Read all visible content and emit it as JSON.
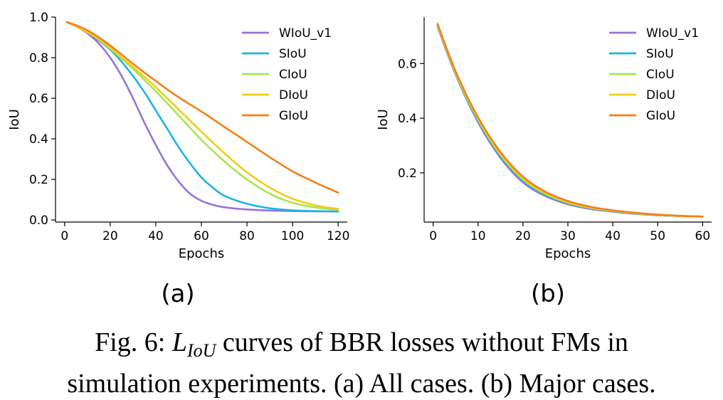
{
  "chart_data": [
    {
      "type": "line",
      "panel_label": "(a)",
      "xlabel": "Epochs",
      "ylabel": "IoU",
      "xlim": [
        -4,
        124
      ],
      "ylim": [
        -0.01,
        1.0
      ],
      "xticks": [
        0,
        20,
        40,
        60,
        80,
        100,
        120
      ],
      "yticks": [
        0.0,
        0.2,
        0.4,
        0.6,
        0.8,
        1.0
      ],
      "ytick_labels": [
        "0.0",
        "0.2",
        "0.4",
        "0.6",
        "0.8",
        "1.0"
      ],
      "grid": false,
      "legend_position": "top-right",
      "series": [
        {
          "name": "WIoU_v1",
          "color": "#9575D6",
          "x": [
            1,
            5,
            10,
            15,
            20,
            25,
            30,
            35,
            40,
            45,
            50,
            55,
            60,
            65,
            70,
            80,
            90,
            100,
            110,
            120
          ],
          "y": [
            0.975,
            0.955,
            0.92,
            0.87,
            0.8,
            0.71,
            0.6,
            0.48,
            0.37,
            0.27,
            0.19,
            0.13,
            0.095,
            0.075,
            0.063,
            0.052,
            0.047,
            0.044,
            0.043,
            0.042
          ]
        },
        {
          "name": "SIoU",
          "color": "#1CB5E6",
          "x": [
            1,
            5,
            10,
            15,
            20,
            25,
            30,
            35,
            40,
            45,
            50,
            55,
            60,
            65,
            70,
            80,
            90,
            100,
            110,
            120
          ],
          "y": [
            0.975,
            0.955,
            0.925,
            0.885,
            0.84,
            0.78,
            0.71,
            0.63,
            0.54,
            0.45,
            0.36,
            0.28,
            0.21,
            0.16,
            0.12,
            0.08,
            0.058,
            0.048,
            0.044,
            0.042
          ]
        },
        {
          "name": "CIoU",
          "color": "#A8E64F",
          "x": [
            1,
            5,
            10,
            15,
            20,
            25,
            30,
            35,
            40,
            45,
            50,
            55,
            60,
            70,
            80,
            90,
            100,
            110,
            120
          ],
          "y": [
            0.975,
            0.955,
            0.925,
            0.89,
            0.845,
            0.795,
            0.745,
            0.69,
            0.635,
            0.575,
            0.515,
            0.455,
            0.395,
            0.29,
            0.2,
            0.13,
            0.085,
            0.062,
            0.05
          ]
        },
        {
          "name": "DIoU",
          "color": "#F2CC1A",
          "x": [
            1,
            5,
            10,
            15,
            20,
            25,
            30,
            35,
            40,
            45,
            50,
            55,
            60,
            70,
            80,
            90,
            100,
            110,
            120
          ],
          "y": [
            0.975,
            0.955,
            0.925,
            0.89,
            0.85,
            0.8,
            0.755,
            0.705,
            0.655,
            0.6,
            0.545,
            0.49,
            0.435,
            0.33,
            0.235,
            0.16,
            0.105,
            0.072,
            0.055
          ]
        },
        {
          "name": "GIoU",
          "color": "#F57F17",
          "x": [
            1,
            5,
            10,
            15,
            20,
            25,
            30,
            40,
            50,
            60,
            70,
            80,
            90,
            100,
            110,
            120
          ],
          "y": [
            0.975,
            0.96,
            0.935,
            0.9,
            0.86,
            0.815,
            0.77,
            0.685,
            0.605,
            0.535,
            0.46,
            0.385,
            0.31,
            0.24,
            0.185,
            0.135
          ]
        }
      ]
    },
    {
      "type": "line",
      "panel_label": "(b)",
      "xlabel": "Epochs",
      "ylabel": "IoU",
      "xlim": [
        -2,
        62
      ],
      "ylim": [
        0.02,
        0.77
      ],
      "xticks": [
        0,
        10,
        20,
        30,
        40,
        50,
        60
      ],
      "yticks": [
        0.2,
        0.4,
        0.6
      ],
      "ytick_labels": [
        "0.2",
        "0.4",
        "0.6"
      ],
      "grid": false,
      "legend_position": "top-right",
      "series": [
        {
          "name": "WIoU_v1",
          "color": "#9575D6",
          "x": [
            1,
            5,
            10,
            15,
            20,
            25,
            30,
            35,
            40,
            45,
            50,
            55,
            60
          ],
          "y": [
            0.735,
            0.56,
            0.385,
            0.255,
            0.165,
            0.115,
            0.085,
            0.068,
            0.058,
            0.05,
            0.045,
            0.042,
            0.04
          ]
        },
        {
          "name": "SIoU",
          "color": "#1CB5E6",
          "x": [
            1,
            5,
            10,
            15,
            20,
            25,
            30,
            35,
            40,
            45,
            50,
            55,
            60
          ],
          "y": [
            0.737,
            0.562,
            0.39,
            0.262,
            0.172,
            0.12,
            0.089,
            0.071,
            0.06,
            0.051,
            0.045,
            0.042,
            0.04
          ]
        },
        {
          "name": "CIoU",
          "color": "#A8E64F",
          "x": [
            1,
            5,
            10,
            15,
            20,
            25,
            30,
            35,
            40,
            45,
            50,
            55,
            60
          ],
          "y": [
            0.74,
            0.565,
            0.395,
            0.266,
            0.176,
            0.123,
            0.091,
            0.072,
            0.061,
            0.052,
            0.046,
            0.042,
            0.04
          ]
        },
        {
          "name": "DIoU",
          "color": "#F2CC1A",
          "x": [
            1,
            5,
            10,
            15,
            20,
            25,
            30,
            35,
            40,
            45,
            50,
            55,
            60
          ],
          "y": [
            0.742,
            0.568,
            0.398,
            0.27,
            0.18,
            0.126,
            0.093,
            0.074,
            0.062,
            0.053,
            0.046,
            0.042,
            0.04
          ]
        },
        {
          "name": "GIoU",
          "color": "#F57F17",
          "x": [
            1,
            5,
            10,
            15,
            20,
            25,
            30,
            35,
            40,
            45,
            50,
            55,
            60
          ],
          "y": [
            0.745,
            0.572,
            0.403,
            0.276,
            0.186,
            0.131,
            0.097,
            0.076,
            0.063,
            0.054,
            0.047,
            0.043,
            0.04
          ]
        }
      ]
    }
  ],
  "caption": {
    "prefix": "Fig. 6: ",
    "math_symbol": "L",
    "math_subscript": "IoU",
    "line1_rest": " curves of BBR losses without FMs in",
    "line2": "simulation experiments. (a) All cases. (b) Major cases."
  }
}
